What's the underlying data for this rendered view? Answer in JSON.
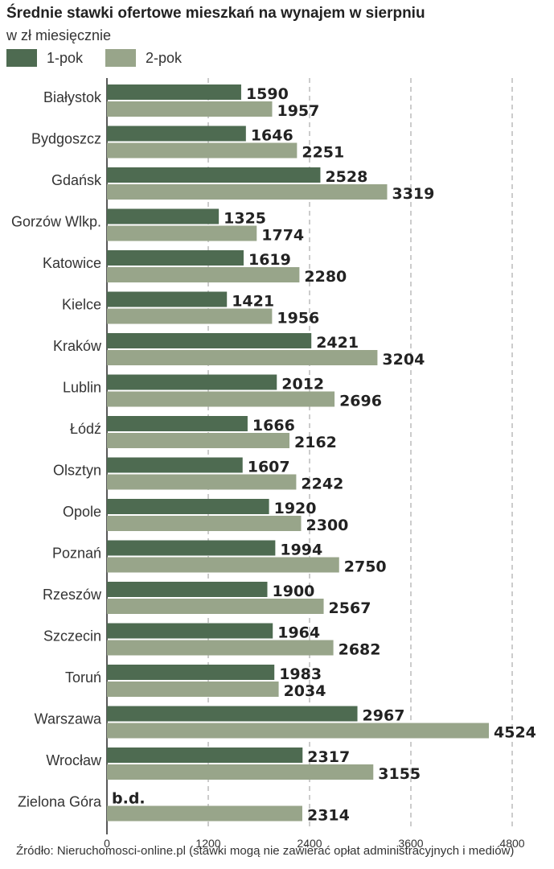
{
  "chart_data": {
    "type": "bar",
    "orientation": "horizontal",
    "title": "Średnie stawki ofertowe mieszkań na wynajem w sierpniu",
    "subtitle": "w zł miesięcznie",
    "categories": [
      "Białystok",
      "Bydgoszcz",
      "Gdańsk",
      "Gorzów Wlkp.",
      "Katowice",
      "Kielce",
      "Kraków",
      "Lublin",
      "Łódź",
      "Olsztyn",
      "Opole",
      "Poznań",
      "Rzeszów",
      "Szczecin",
      "Toruń",
      "Warszawa",
      "Wrocław",
      "Zielona Góra"
    ],
    "series": [
      {
        "name": "1-pok",
        "color": "#4e6b51",
        "values": [
          1590,
          1646,
          2528,
          1325,
          1619,
          1421,
          2421,
          2012,
          1666,
          1607,
          1920,
          1994,
          1900,
          1964,
          1983,
          2967,
          2317,
          null
        ]
      },
      {
        "name": "2-pok",
        "color": "#98a58a",
        "values": [
          1957,
          2251,
          3319,
          1774,
          2280,
          1956,
          3204,
          2696,
          2162,
          2242,
          2300,
          2750,
          2567,
          2682,
          2034,
          4524,
          3155,
          2314
        ]
      }
    ],
    "missing_label": "b.d.",
    "xlim": [
      0,
      5200
    ],
    "xticks": [
      0,
      1200,
      2400,
      3600,
      4800
    ],
    "xlabel": "",
    "ylabel": "",
    "grid": "dashed vertical",
    "legend_position": "top-left"
  },
  "source": "Źródło: Nieruchomosci-online.pl (stawki mogą nie zawierać opłat administracyjnych i mediów)"
}
